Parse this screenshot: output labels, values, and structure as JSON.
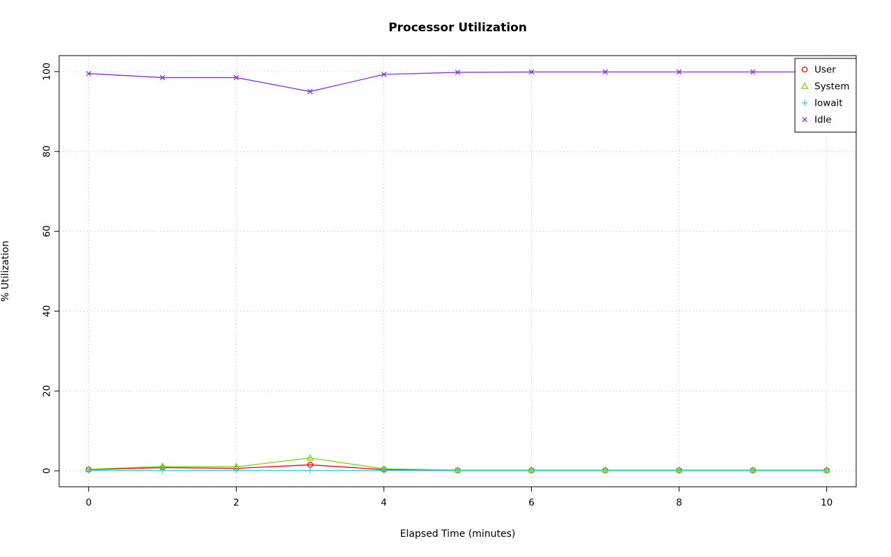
{
  "chart_data": {
    "type": "line",
    "title": "Processor Utilization",
    "xlabel": "Elapsed Time (minutes)",
    "ylabel": "% Utilization",
    "grid": true,
    "legend_position": "top-right",
    "xlim": [
      0,
      10
    ],
    "ylim": [
      0,
      100
    ],
    "xticks": [
      0,
      2,
      4,
      6,
      8,
      10
    ],
    "yticks": [
      0,
      20,
      40,
      60,
      80,
      100
    ],
    "x": [
      0,
      1,
      2,
      3,
      4,
      5,
      6,
      7,
      8,
      9,
      10
    ],
    "series": [
      {
        "name": "User",
        "color": "#FF0000",
        "marker": "circle",
        "values": [
          0.3,
          0.8,
          0.6,
          1.5,
          0.3,
          0.1,
          0.1,
          0.1,
          0.1,
          0.1,
          0.1
        ]
      },
      {
        "name": "System",
        "color": "#7BD41E",
        "marker": "triangle",
        "values": [
          0.4,
          1.1,
          1.0,
          3.2,
          0.5,
          0.2,
          0.2,
          0.2,
          0.2,
          0.2,
          0.2
        ]
      },
      {
        "name": "Iowait",
        "color": "#29D1E8",
        "marker": "plus",
        "values": [
          0.1,
          0.1,
          0.1,
          0.1,
          0.1,
          0.0,
          0.0,
          0.0,
          0.0,
          0.0,
          0.0
        ]
      },
      {
        "name": "Idle",
        "color": "#8A2BE2",
        "marker": "x",
        "values": [
          99.5,
          98.5,
          98.5,
          95.0,
          99.3,
          99.8,
          99.9,
          99.9,
          99.9,
          99.9,
          99.9
        ]
      }
    ]
  }
}
